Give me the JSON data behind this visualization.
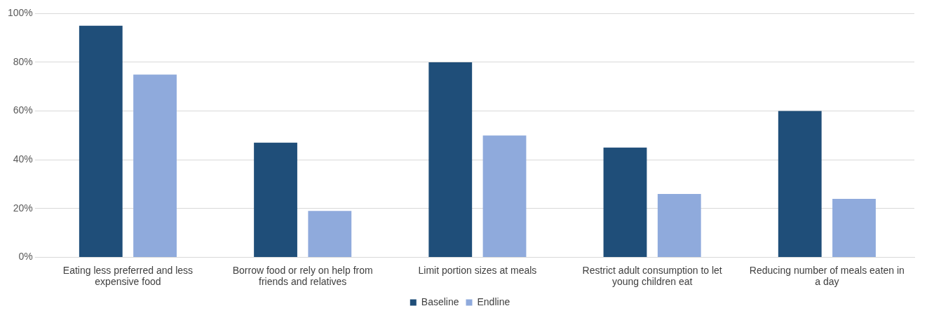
{
  "chart_data": {
    "type": "bar",
    "categories": [
      "Eating less preferred and less expensive food",
      "Borrow food or rely on help from friends and relatives",
      "Limit portion sizes at meals",
      "Restrict adult consumption to let young children eat",
      "Reducing number of meals eaten in a day"
    ],
    "series": [
      {
        "name": "Baseline",
        "color": "#1f4e79",
        "values": [
          95,
          47,
          80,
          45,
          60
        ]
      },
      {
        "name": "Endline",
        "color": "#8faadc",
        "values": [
          75,
          19,
          50,
          26,
          24
        ]
      }
    ],
    "ylim": [
      0,
      100
    ],
    "yticks": [
      {
        "value": 0,
        "label": "0%"
      },
      {
        "value": 20,
        "label": "20%"
      },
      {
        "value": 40,
        "label": "40%"
      },
      {
        "value": 60,
        "label": "60%"
      },
      {
        "value": 80,
        "label": "80%"
      },
      {
        "value": 100,
        "label": "100%"
      }
    ],
    "grid": "y",
    "legend": "bottom"
  }
}
